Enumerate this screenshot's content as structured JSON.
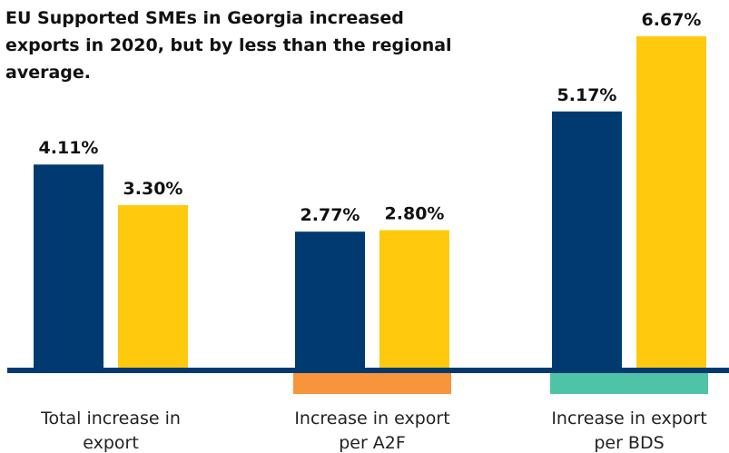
{
  "chart_data": {
    "type": "bar",
    "title": "EU Supported SMEs in Georgia increased exports in 2020, but by less than the regional average.",
    "title_lines": [
      "EU Supported SMEs in Georgia increased",
      "exports in 2020, but by less than the regional",
      "average."
    ],
    "categories": [
      "Total increase in export",
      "Increase in export per A2F",
      "Increase in export per BDS"
    ],
    "category_lines": [
      [
        "Total increase in",
        "export"
      ],
      [
        "Increase in export",
        "per A2F"
      ],
      [
        "Increase in export",
        "per BDS"
      ]
    ],
    "series": [
      {
        "values": [
          4.11,
          2.77,
          5.17
        ],
        "labels": [
          "4.11%",
          "2.77%",
          "5.17%"
        ],
        "color": "#003a70"
      },
      {
        "values": [
          3.3,
          2.8,
          6.67
        ],
        "labels": [
          "3.30%",
          "2.80%",
          "6.67%"
        ],
        "color": "#ffc90e"
      }
    ],
    "category_accent_colors": [
      null,
      "#f7943c",
      "#4ec3a5"
    ],
    "axis_color": "#003a70",
    "ylim": [
      0,
      6.67
    ],
    "grid": false,
    "legend": "none",
    "xlabel": "",
    "ylabel": ""
  }
}
